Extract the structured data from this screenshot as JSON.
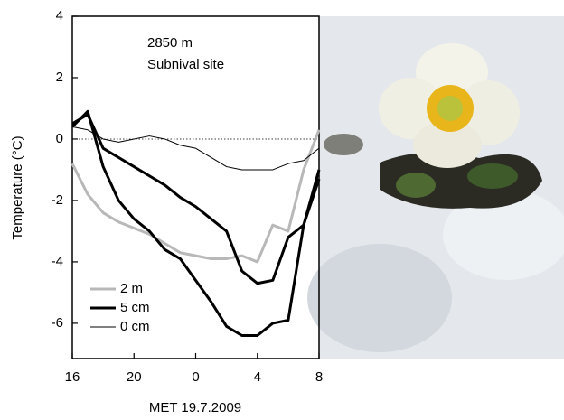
{
  "chart_data": {
    "type": "line",
    "annotations": [
      "2850 m",
      "Subnival site"
    ],
    "ylabel": "Temperature (°C)",
    "xlabel": "MET 19.7.2009",
    "x": [
      16,
      17,
      18,
      19,
      20,
      21,
      22,
      23,
      24,
      25,
      26,
      27,
      28,
      29,
      30,
      31,
      32
    ],
    "xlim": [
      16,
      32
    ],
    "xticks": [
      16,
      20,
      {
        "value": 24,
        "label": "0"
      },
      {
        "value": 28,
        "label": "4"
      },
      {
        "value": 32,
        "label": "8"
      }
    ],
    "ylim": [
      -7.15,
      4
    ],
    "yticks": [
      4,
      2,
      0,
      -2,
      -4,
      -6
    ],
    "hline": 0,
    "series": [
      {
        "name": "2 m",
        "color": "#b8b8b8",
        "line_width": 3,
        "values": [
          -0.8,
          -1.8,
          -2.4,
          -2.7,
          -2.9,
          -3.1,
          -3.4,
          -3.7,
          -3.8,
          -3.9,
          -3.9,
          -3.8,
          -4.0,
          -2.8,
          -3.0,
          -1.0,
          0.3
        ]
      },
      {
        "name": "5 cm",
        "color": "#000000",
        "line_width": 3,
        "values": [
          0.5,
          0.8,
          -0.3,
          -0.6,
          -0.9,
          -1.2,
          -1.5,
          -1.9,
          -2.2,
          -2.6,
          -3.0,
          -4.3,
          -4.7,
          -4.6,
          -3.2,
          -2.8,
          -1.0
        ]
      },
      {
        "color": "#000000",
        "line_width": 3,
        "values": [
          0.4,
          0.9,
          -0.9,
          -2.0,
          -2.6,
          -3.0,
          -3.6,
          -3.9,
          -4.6,
          -5.3,
          -6.1,
          -6.4,
          -6.4,
          -6.0,
          -5.9,
          -2.8,
          -1.3
        ]
      },
      {
        "name": "0 cm",
        "color": "#000000",
        "line_width": 1,
        "values": [
          0.4,
          0.3,
          0.0,
          -0.1,
          0.0,
          0.1,
          0.0,
          -0.2,
          -0.3,
          -0.6,
          -0.9,
          -1.0,
          -1.0,
          -1.0,
          -0.8,
          -0.7,
          -0.3
        ]
      }
    ]
  }
}
